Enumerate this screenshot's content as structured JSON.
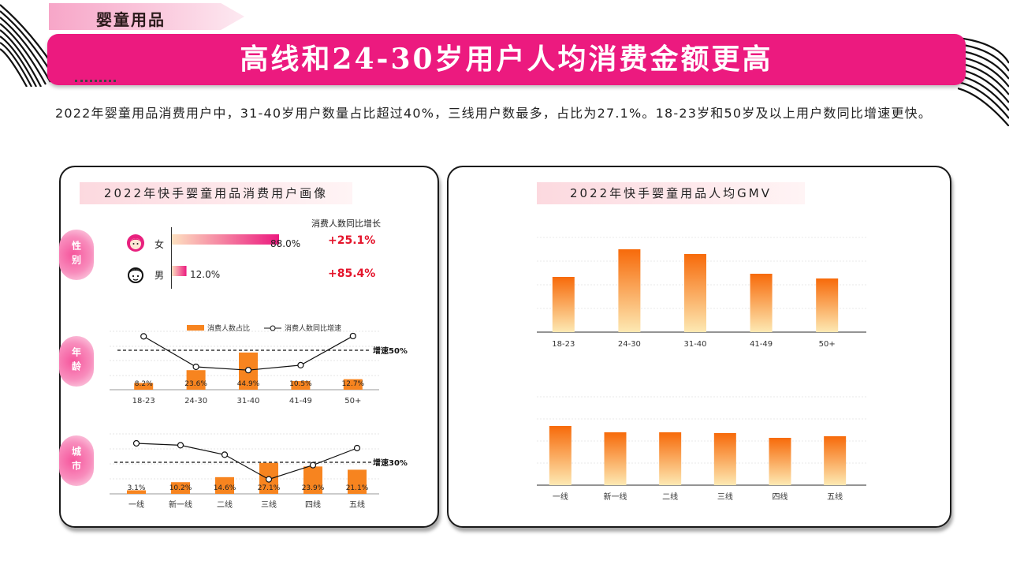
{
  "category_tag": "婴童用品",
  "headline": "高线和24-30岁用户人均消费金额更高",
  "summary": "2022年婴童用品消费用户中，31-40岁用户数量占比超过40%，三线用户数最多，占比为27.1%。18-23岁和50岁及以上用户数同比增速更快。",
  "colors": {
    "brand_pink": "#ec1a7f",
    "bar_orange": "#f7841f",
    "growth_red": "#e4142b"
  },
  "left_panel": {
    "title": "2022年快手婴童用品消费用户画像",
    "gender": {
      "section_label": "性别",
      "growth_header": "消费人数同比增长",
      "rows": [
        {
          "icon": "female-user-icon",
          "label": "女",
          "share": 88.0,
          "share_text": "88.0%",
          "growth": "+25.1%"
        },
        {
          "icon": "male-user-icon",
          "label": "男",
          "share": 12.0,
          "share_text": "12.0%",
          "growth": "+85.4%"
        }
      ]
    },
    "age": {
      "section_label": "年龄",
      "legend_bar": "消费人数占比",
      "legend_line": "消费人数同比增速",
      "ref_label": "增速50%"
    },
    "city": {
      "section_label": "城市",
      "ref_label": "增速30%"
    }
  },
  "right_panel": {
    "title": "2022年快手婴童用品人均GMV"
  },
  "chart_data": [
    {
      "type": "bar",
      "title": "消费人数占比 / 消费人数同比增速（年龄）",
      "categories": [
        "18-23",
        "24-30",
        "31-40",
        "41-49",
        "50+"
      ],
      "series": [
        {
          "name": "消费人数占比",
          "values": [
            8.2,
            23.6,
            44.9,
            10.5,
            12.7
          ],
          "labels": [
            "8.2%",
            "23.6%",
            "44.9%",
            "10.5%",
            "12.7%"
          ]
        },
        {
          "name": "消费人数同比增速",
          "type": "line",
          "values": [
            92,
            0,
            -10,
            5,
            93
          ]
        }
      ],
      "reference_line": {
        "label": "增速50%",
        "value": 50
      }
    },
    {
      "type": "bar",
      "title": "消费人数占比 / 消费人数同比增速（城市）",
      "categories": [
        "一线",
        "新一线",
        "二线",
        "三线",
        "四线",
        "五线"
      ],
      "series": [
        {
          "name": "消费人数占比",
          "values": [
            3.1,
            10.2,
            14.6,
            27.1,
            23.9,
            21.1
          ],
          "labels": [
            "3.1%",
            "10.2%",
            "14.6%",
            "27.1%",
            "23.9%",
            "21.1%"
          ]
        },
        {
          "name": "消费人数同比增速",
          "type": "line",
          "values": [
            50,
            48,
            38,
            12,
            27,
            45
          ]
        }
      ],
      "reference_line": {
        "label": "增速30%",
        "value": 30
      }
    },
    {
      "type": "bar",
      "title": "2022年快手婴童用品人均GMV（年龄）",
      "categories": [
        "18-23",
        "24-30",
        "31-40",
        "41-49",
        "50+"
      ],
      "values": [
        70,
        105,
        99,
        74,
        68
      ],
      "ylim": [
        0,
        120
      ],
      "grid": true
    },
    {
      "type": "bar",
      "title": "2022年快手婴童用品人均GMV（城市）",
      "categories": [
        "一线",
        "新一线",
        "二线",
        "三线",
        "四线",
        "五线"
      ],
      "values": [
        75,
        67,
        67,
        66,
        60,
        62
      ],
      "ylim": [
        0,
        112
      ],
      "grid": true
    }
  ]
}
